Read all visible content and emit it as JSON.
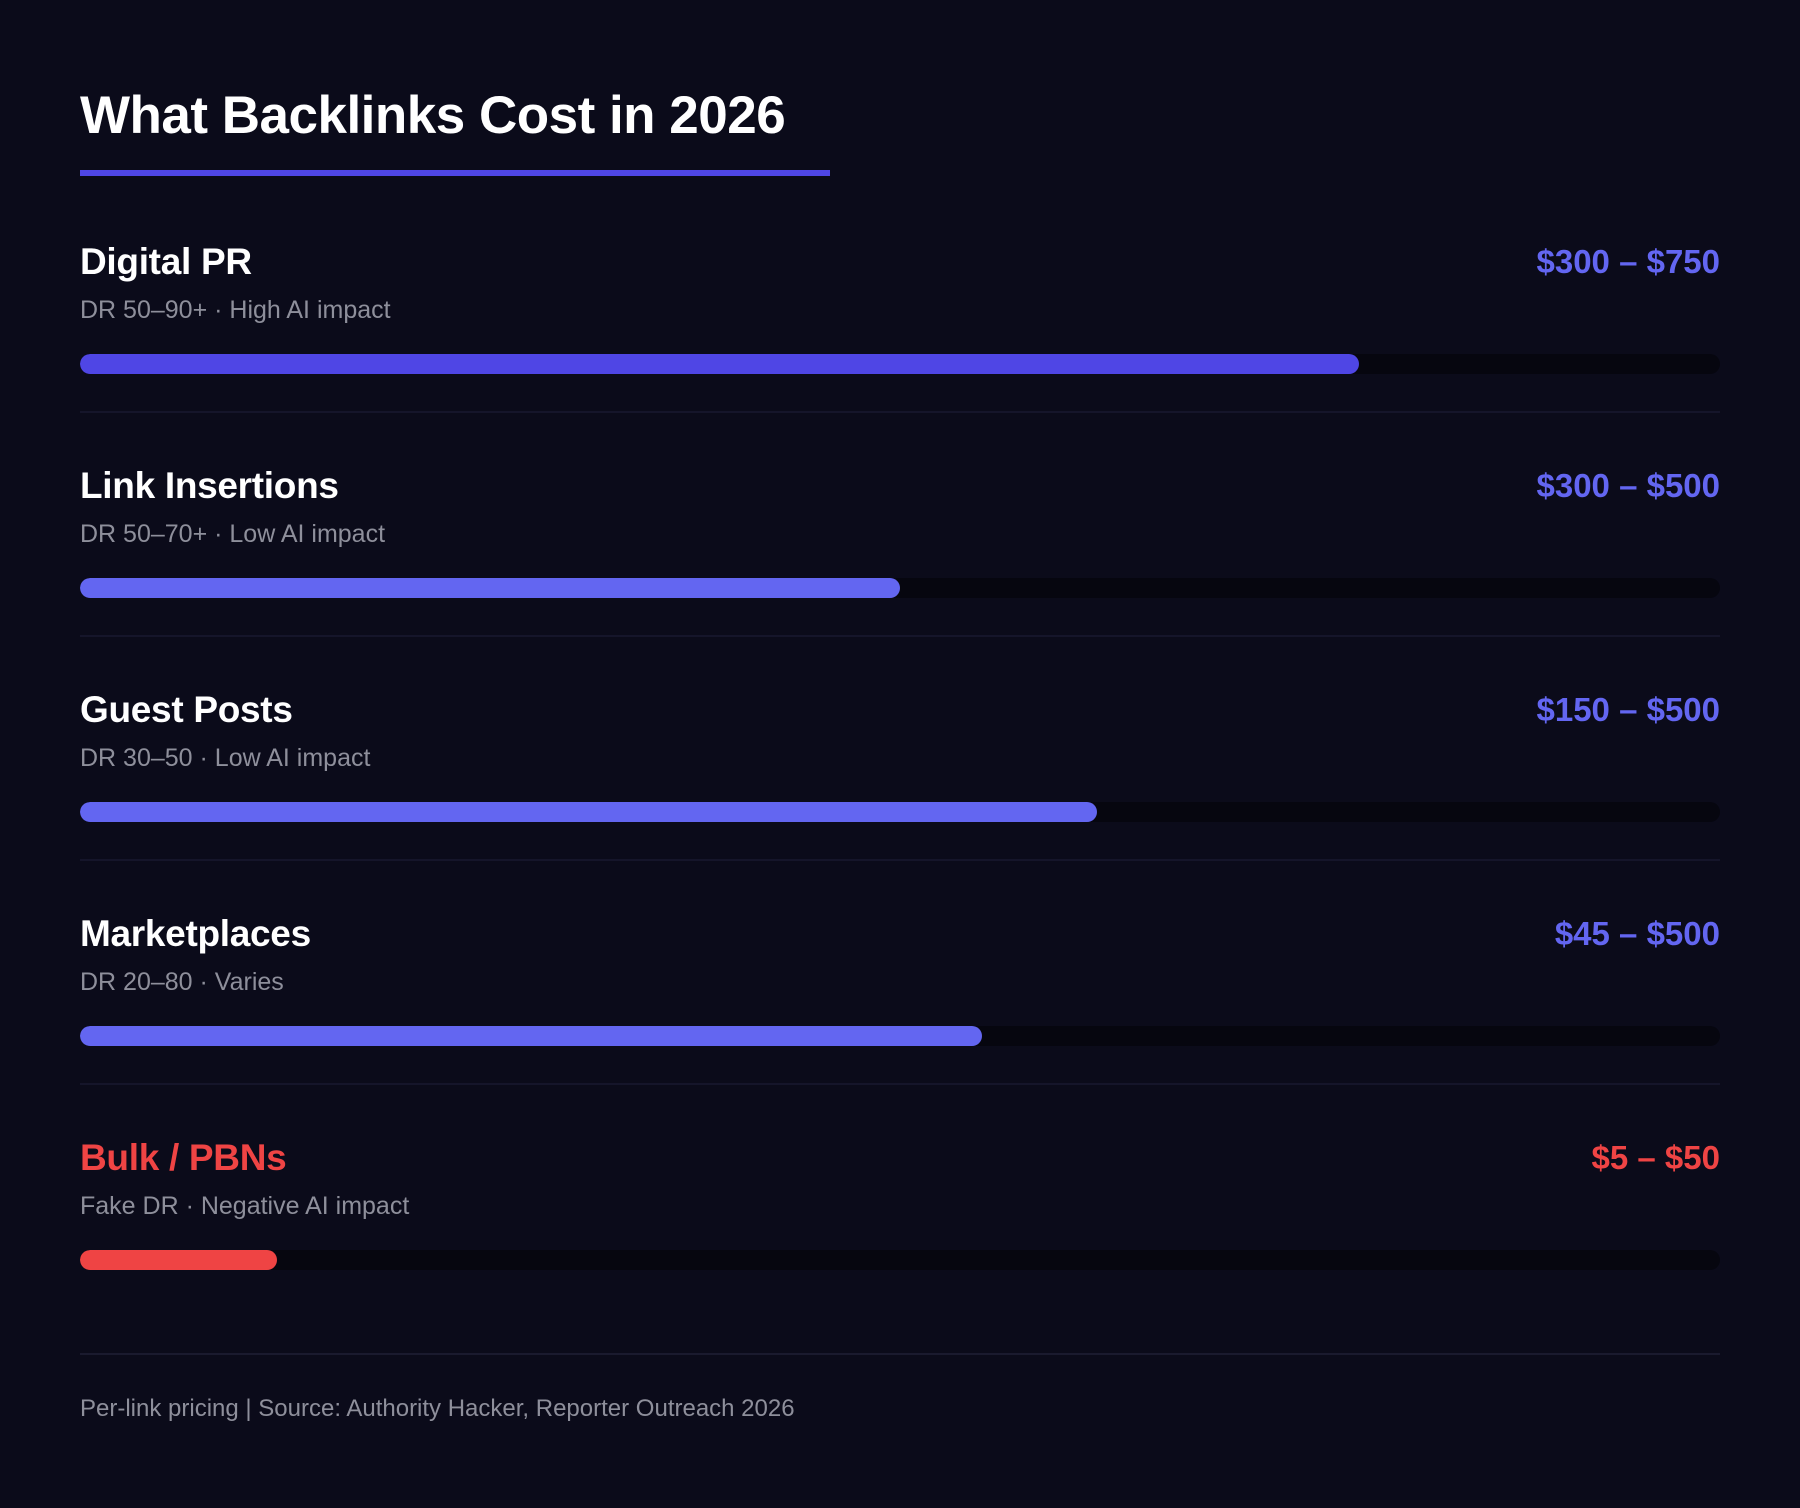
{
  "header": {
    "title": "What Backlinks Cost in 2026"
  },
  "colors": {
    "background": "#0b0b1a",
    "accent": "#4f46e5",
    "indigo": "#6366f1",
    "red": "#ef4444",
    "track": "#06060f",
    "muted_text": "#8e8f9b"
  },
  "rows": [
    {
      "name": "Digital PR",
      "price": "$300 – $750",
      "subtitle": "DR 50–90+ · High AI impact",
      "fill_percent": 78,
      "bar_color": "#4f46e5",
      "name_color": "#ffffff",
      "price_color": "#6366f1"
    },
    {
      "name": "Link Insertions",
      "price": "$300 – $500",
      "subtitle": "DR 50–70+ · Low AI impact",
      "fill_percent": 50,
      "bar_color": "#6366f1",
      "name_color": "#ffffff",
      "price_color": "#6366f1"
    },
    {
      "name": "Guest Posts",
      "price": "$150 – $500",
      "subtitle": "DR 30–50 · Low AI impact",
      "fill_percent": 62,
      "bar_color": "#6366f1",
      "name_color": "#ffffff",
      "price_color": "#6366f1"
    },
    {
      "name": "Marketplaces",
      "price": "$45 – $500",
      "subtitle": "DR 20–80 · Varies",
      "fill_percent": 55,
      "bar_color": "#6366f1",
      "name_color": "#ffffff",
      "price_color": "#6366f1"
    },
    {
      "name": "Bulk / PBNs",
      "price": "$5 – $50",
      "subtitle": "Fake DR · Negative AI impact",
      "fill_percent": 12,
      "bar_color": "#ef4444",
      "name_color": "#ef4444",
      "price_color": "#ef4444"
    }
  ],
  "footer": {
    "text": "Per-link pricing | Source: Authority Hacker, Reporter Outreach 2026"
  },
  "chart_data": {
    "type": "bar",
    "orientation": "horizontal",
    "title": "What Backlinks Cost in 2026",
    "categories": [
      "Digital PR",
      "Link Insertions",
      "Guest Posts",
      "Marketplaces",
      "Bulk / PBNs"
    ],
    "values": [
      78,
      50,
      62,
      55,
      12
    ],
    "value_units": "relative bar fill (%)",
    "price_ranges": [
      {
        "category": "Digital PR",
        "min": 300,
        "max": 750,
        "label": "$300 – $750"
      },
      {
        "category": "Link Insertions",
        "min": 300,
        "max": 500,
        "label": "$300 – $500"
      },
      {
        "category": "Guest Posts",
        "min": 150,
        "max": 500,
        "label": "$150 – $500"
      },
      {
        "category": "Marketplaces",
        "min": 45,
        "max": 500,
        "label": "$45 – $500"
      },
      {
        "category": "Bulk / PBNs",
        "min": 5,
        "max": 50,
        "label": "$5 – $50"
      }
    ],
    "annotations": [
      "DR 50–90+ · High AI impact",
      "DR 50–70+ · Low AI impact",
      "DR 30–50 · Low AI impact",
      "DR 20–80 · Varies",
      "Fake DR · Negative AI impact"
    ],
    "footnote": "Per-link pricing | Source: Authority Hacker, Reporter Outreach 2026",
    "xlabel": "",
    "ylabel": "",
    "grid": false,
    "legend": "none"
  }
}
